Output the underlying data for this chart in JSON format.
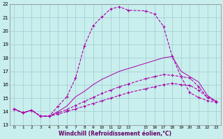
{
  "xlabel": "Windchill (Refroidissement éolien,°C)",
  "xlim": [
    -0.5,
    23.5
  ],
  "ylim": [
    13,
    22
  ],
  "xticks": [
    0,
    1,
    2,
    3,
    4,
    5,
    6,
    7,
    8,
    9,
    10,
    11,
    12,
    13,
    15,
    16,
    17,
    18,
    19,
    20,
    21,
    22,
    23
  ],
  "yticks": [
    13,
    14,
    15,
    16,
    17,
    18,
    19,
    20,
    21,
    22
  ],
  "bg_color": "#c8eeed",
  "grid_color": "#a0cccc",
  "line_color": "#aa00aa",
  "line1_x": [
    0,
    1,
    2,
    3,
    4,
    5,
    6,
    7,
    8,
    9,
    10,
    11,
    12,
    13,
    15,
    16,
    17,
    18,
    19,
    20,
    21,
    22,
    23
  ],
  "line1_y": [
    14.2,
    13.9,
    14.1,
    13.65,
    13.65,
    14.4,
    15.1,
    16.5,
    18.9,
    20.4,
    21.05,
    21.65,
    21.8,
    21.55,
    21.5,
    21.25,
    20.35,
    18.1,
    16.6,
    15.4,
    15.05,
    14.8,
    14.7
  ],
  "line2_x": [
    0,
    1,
    2,
    3,
    4,
    5,
    6,
    7,
    8,
    9,
    10,
    11,
    12,
    13,
    15,
    16,
    17,
    18,
    19,
    20,
    21,
    22,
    23
  ],
  "line2_y": [
    14.2,
    13.9,
    14.1,
    13.65,
    13.65,
    14.0,
    14.4,
    15.1,
    15.5,
    16.0,
    16.4,
    16.7,
    17.0,
    17.2,
    17.6,
    17.8,
    18.0,
    18.1,
    17.0,
    16.6,
    16.2,
    15.2,
    14.75
  ],
  "line3_x": [
    0,
    1,
    2,
    3,
    4,
    5,
    6,
    7,
    8,
    9,
    10,
    11,
    12,
    13,
    15,
    16,
    17,
    18,
    19,
    20,
    21,
    22,
    23
  ],
  "line3_y": [
    14.2,
    13.9,
    14.1,
    13.65,
    13.65,
    13.9,
    14.15,
    14.45,
    14.75,
    15.05,
    15.35,
    15.6,
    15.85,
    16.05,
    16.45,
    16.6,
    16.75,
    16.7,
    16.6,
    16.5,
    15.85,
    15.05,
    14.75
  ],
  "line4_x": [
    0,
    1,
    2,
    3,
    4,
    5,
    6,
    7,
    8,
    9,
    10,
    11,
    12,
    13,
    15,
    16,
    17,
    18,
    19,
    20,
    21,
    22,
    23
  ],
  "line4_y": [
    14.2,
    13.9,
    14.1,
    13.65,
    13.65,
    13.8,
    14.0,
    14.2,
    14.4,
    14.6,
    14.8,
    15.0,
    15.2,
    15.4,
    15.7,
    15.85,
    16.0,
    16.1,
    16.0,
    15.95,
    15.6,
    15.05,
    14.75
  ]
}
